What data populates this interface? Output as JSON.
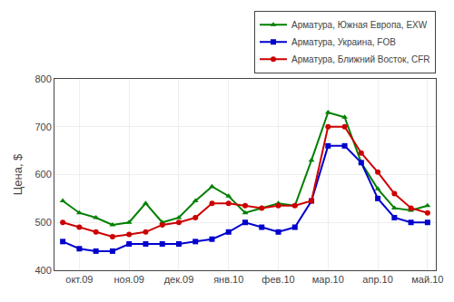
{
  "chart_data": {
    "type": "line",
    "y_label": "Цена, $",
    "categories": [
      null,
      "окт.09",
      null,
      null,
      "ноя.09",
      null,
      null,
      "дек.09",
      null,
      null,
      "янв.10",
      null,
      null,
      "фев.10",
      null,
      null,
      "мар.10",
      null,
      null,
      "апр.10",
      null,
      null,
      "май.10"
    ],
    "series": [
      {
        "name": "Арматура, Южная Европа, EXW",
        "color": "#008000",
        "marker": "triangle-up",
        "values": [
          545,
          520,
          510,
          495,
          500,
          540,
          500,
          510,
          545,
          575,
          555,
          520,
          530,
          540,
          535,
          630,
          730,
          720,
          625,
          570,
          530,
          525,
          535
        ]
      },
      {
        "name": "Арматура, Украина, FOB",
        "color": "#0000cd",
        "marker": "square",
        "values": [
          460,
          445,
          440,
          440,
          455,
          455,
          455,
          455,
          460,
          465,
          480,
          500,
          490,
          480,
          490,
          545,
          660,
          660,
          625,
          550,
          510,
          500,
          500
        ]
      },
      {
        "name": "Арматура, Ближний Восток, CFR",
        "color": "#cc0000",
        "marker": "circle",
        "values": [
          500,
          490,
          480,
          470,
          475,
          480,
          495,
          500,
          510,
          540,
          540,
          535,
          530,
          535,
          535,
          545,
          700,
          700,
          645,
          605,
          560,
          530,
          520
        ]
      }
    ],
    "ylim": [
      400,
      800
    ],
    "yticks": [
      400,
      500,
      600,
      700,
      800
    ],
    "grid": true,
    "legend": "top"
  }
}
